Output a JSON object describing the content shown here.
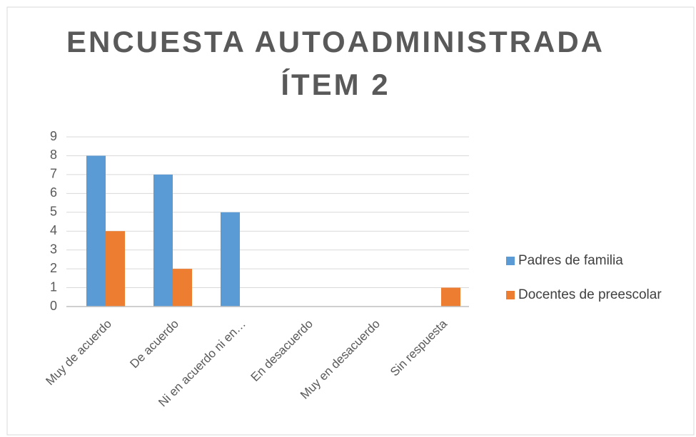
{
  "chart_data": {
    "type": "bar",
    "title": [
      "ENCUESTA AUTOADMINISTRADA",
      "ÍTEM 2"
    ],
    "categories": [
      "Muy de acuerdo",
      "De acuerdo",
      "Ni en acuerdo ni en…",
      "En desacuerdo",
      "Muy en desacuerdo",
      "Sin respuesta"
    ],
    "series": [
      {
        "name": "Padres de familia",
        "color": "#5b9bd5",
        "values": [
          8,
          7,
          5,
          0,
          0,
          0
        ]
      },
      {
        "name": "Docentes de preescolar",
        "color": "#ed7d31",
        "values": [
          4,
          2,
          0,
          0,
          0,
          1
        ]
      }
    ],
    "ylim": [
      0,
      9
    ],
    "yticks": [
      0,
      1,
      2,
      3,
      4,
      5,
      6,
      7,
      8,
      9
    ],
    "grid": true,
    "legend": "right"
  }
}
